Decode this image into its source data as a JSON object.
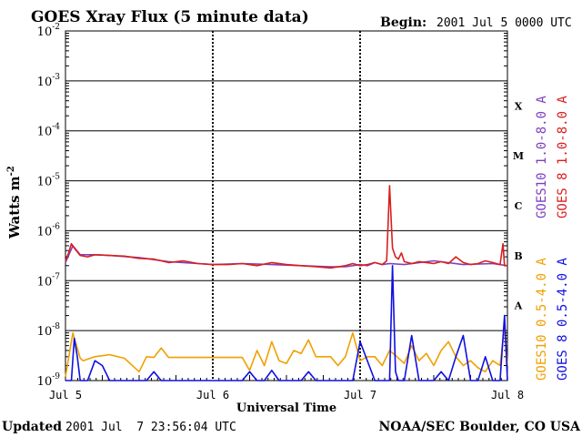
{
  "header": {
    "title": "GOES Xray Flux (5 minute data)",
    "begin_label": "Begin:",
    "begin_value": "2001 Jul 5 0000 UTC"
  },
  "footer": {
    "updated_label": "Updated",
    "updated_value": "2001 Jul  7 23:56:04 UTC",
    "source": "NOAA/SEC Boulder, CO USA"
  },
  "chart_data": {
    "type": "line",
    "xlabel": "Universal Time",
    "ylabel": "Watts m",
    "ylabel_superscript": "-2",
    "y_scale": "log",
    "ylim": [
      1e-09,
      0.01
    ],
    "y_ticks": [
      {
        "base": "10",
        "exp": "-2"
      },
      {
        "base": "10",
        "exp": "-3"
      },
      {
        "base": "10",
        "exp": "-4"
      },
      {
        "base": "10",
        "exp": "-5"
      },
      {
        "base": "10",
        "exp": "-6"
      },
      {
        "base": "10",
        "exp": "-7"
      },
      {
        "base": "10",
        "exp": "-8"
      },
      {
        "base": "10",
        "exp": "-9"
      }
    ],
    "x_ticks": [
      "Jul 5",
      "Jul 6",
      "Jul 7",
      "Jul 8"
    ],
    "xlim_days": [
      0,
      3
    ],
    "flare_classes": [
      "X",
      "M",
      "C",
      "B",
      "A"
    ],
    "grid": true,
    "colors": {
      "goes10_long": "#7f3fbf",
      "goes8_long": "#d81e1e",
      "goes10_short": "#f0a000",
      "goes8_short": "#1010e0"
    },
    "series": [
      {
        "name": "GOES10 1.0-8.0 A",
        "color_key": "goes10_long",
        "x": [
          0,
          0.05,
          0.1,
          0.2,
          0.3,
          0.5,
          0.7,
          0.9,
          1.0,
          1.2,
          1.4,
          1.6,
          1.8,
          1.9,
          2.0,
          2.05,
          2.1,
          2.15,
          2.2,
          2.3,
          2.5,
          2.7,
          2.9,
          3.0
        ],
        "values": [
          2.3e-07,
          5e-07,
          3.3e-07,
          3.3e-07,
          3.2e-07,
          2.9e-07,
          2.4e-07,
          2.2e-07,
          2.1e-07,
          2.2e-07,
          2.1e-07,
          2e-07,
          1.9e-07,
          1.9e-07,
          2.1e-07,
          2e-07,
          2.3e-07,
          2.1e-07,
          2.2e-07,
          2.1e-07,
          2.5e-07,
          2.1e-07,
          2.2e-07,
          2e-07
        ]
      },
      {
        "name": "GOES 8 1.0-8.0 A",
        "color_key": "goes8_long",
        "x": [
          0,
          0.02,
          0.04,
          0.06,
          0.1,
          0.15,
          0.2,
          0.3,
          0.4,
          0.5,
          0.6,
          0.7,
          0.8,
          0.9,
          1.0,
          1.1,
          1.2,
          1.3,
          1.4,
          1.5,
          1.6,
          1.7,
          1.8,
          1.9,
          1.95,
          2.0,
          2.05,
          2.1,
          2.15,
          2.18,
          2.2,
          2.22,
          2.24,
          2.26,
          2.28,
          2.3,
          2.35,
          2.4,
          2.45,
          2.5,
          2.55,
          2.6,
          2.65,
          2.7,
          2.75,
          2.8,
          2.85,
          2.9,
          2.95,
          2.97,
          2.98,
          3.0
        ],
        "values": [
          2.5e-07,
          3.5e-07,
          5.5e-07,
          4.5e-07,
          3.2e-07,
          3e-07,
          3.3e-07,
          3.2e-07,
          3.1e-07,
          2.8e-07,
          2.7e-07,
          2.3e-07,
          2.5e-07,
          2.2e-07,
          2.1e-07,
          2.1e-07,
          2.2e-07,
          2e-07,
          2.3e-07,
          2.1e-07,
          2e-07,
          1.9e-07,
          1.8e-07,
          2e-07,
          2.2e-07,
          2e-07,
          2.1e-07,
          2.3e-07,
          2.1e-07,
          2.5e-07,
          8e-06,
          4.5e-07,
          3e-07,
          2.7e-07,
          3.6e-07,
          2.4e-07,
          2.2e-07,
          2.4e-07,
          2.3e-07,
          2.2e-07,
          2.4e-07,
          2.2e-07,
          3e-07,
          2.3e-07,
          2.1e-07,
          2.2e-07,
          2.5e-07,
          2.3e-07,
          2.1e-07,
          5.5e-07,
          2e-07,
          2e-07
        ]
      },
      {
        "name": "GOES10 0.5-4.0 A",
        "color_key": "goes10_short",
        "x": [
          0,
          0.05,
          0.1,
          0.12,
          0.2,
          0.3,
          0.4,
          0.5,
          0.55,
          0.6,
          0.65,
          0.7,
          0.75,
          0.8,
          0.9,
          1.0,
          1.1,
          1.2,
          1.25,
          1.3,
          1.35,
          1.4,
          1.45,
          1.5,
          1.55,
          1.6,
          1.65,
          1.7,
          1.75,
          1.8,
          1.85,
          1.9,
          1.95,
          2.0,
          2.05,
          2.1,
          2.15,
          2.2,
          2.25,
          2.3,
          2.35,
          2.4,
          2.45,
          2.5,
          2.55,
          2.6,
          2.65,
          2.7,
          2.75,
          2.8,
          2.85,
          2.9,
          2.95,
          2.98,
          3.0
        ],
        "values": [
          1.2e-09,
          9e-09,
          2.8e-09,
          2.5e-09,
          3e-09,
          3.3e-09,
          2.8e-09,
          1.5e-09,
          3e-09,
          2.9e-09,
          4.5e-09,
          2.9e-09,
          2.9e-09,
          2.9e-09,
          2.9e-09,
          2.9e-09,
          2.9e-09,
          2.9e-09,
          1.6e-09,
          4e-09,
          2e-09,
          6e-09,
          2.5e-09,
          2.2e-09,
          4e-09,
          3.5e-09,
          6.5e-09,
          3e-09,
          3e-09,
          3e-09,
          2e-09,
          3e-09,
          9e-09,
          2.5e-09,
          3e-09,
          3e-09,
          2e-09,
          4e-09,
          3e-09,
          2.2e-09,
          5e-09,
          2.5e-09,
          3.5e-09,
          2e-09,
          4e-09,
          6e-09,
          3e-09,
          2e-09,
          2.5e-09,
          1.8e-09,
          1.5e-09,
          2.5e-09,
          2e-09,
          1.2e-08,
          2e-09
        ]
      },
      {
        "name": "GOES 8 0.5-4.0 A",
        "color_key": "goes8_short",
        "x": [
          0,
          0.04,
          0.06,
          0.08,
          0.1,
          0.15,
          0.2,
          0.25,
          0.3,
          0.35,
          0.4,
          0.5,
          0.55,
          0.6,
          0.65,
          0.7,
          0.8,
          0.9,
          1.0,
          1.1,
          1.2,
          1.25,
          1.3,
          1.35,
          1.4,
          1.45,
          1.5,
          1.6,
          1.65,
          1.7,
          1.8,
          1.9,
          1.95,
          2.0,
          2.1,
          2.15,
          2.2,
          2.22,
          2.24,
          2.26,
          2.3,
          2.35,
          2.4,
          2.45,
          2.5,
          2.55,
          2.6,
          2.65,
          2.7,
          2.75,
          2.8,
          2.85,
          2.9,
          2.95,
          2.98,
          3.0
        ],
        "values": [
          1e-09,
          1e-09,
          7e-09,
          3e-09,
          1e-09,
          1e-09,
          2.5e-09,
          2e-09,
          1e-09,
          1e-09,
          1e-09,
          1e-09,
          1e-09,
          1.5e-09,
          1e-09,
          1e-09,
          1e-09,
          1e-09,
          1e-09,
          1e-09,
          1e-09,
          1.5e-09,
          1e-09,
          1e-09,
          1.6e-09,
          1e-09,
          1e-09,
          1e-09,
          1.5e-09,
          1e-09,
          1e-09,
          1e-09,
          1e-09,
          6e-09,
          1e-09,
          1e-09,
          1e-09,
          2e-07,
          1.5e-09,
          1e-09,
          1e-09,
          8e-09,
          1e-09,
          1e-09,
          1e-09,
          1.5e-09,
          1e-09,
          3e-09,
          8e-09,
          1e-09,
          1e-09,
          3e-09,
          1e-09,
          1e-09,
          2e-08,
          1e-09
        ]
      }
    ]
  }
}
